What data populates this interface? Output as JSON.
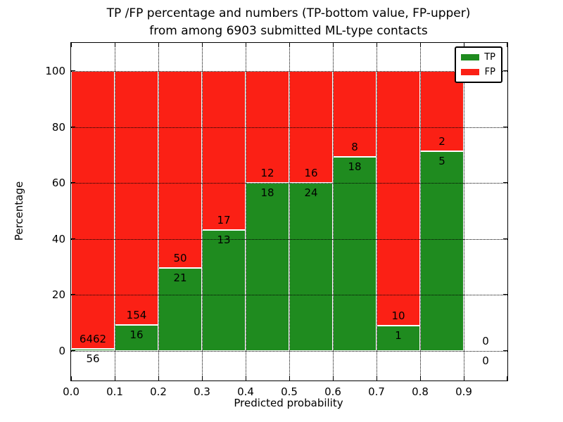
{
  "figure": {
    "background": "#ffffff",
    "plot_border_color": "#000000"
  },
  "chart_data": {
    "type": "bar",
    "stacked": true,
    "title_lines": [
      "TP /FP percentage and numbers (TP-bottom value, FP-upper)",
      "from among 6903 submitted ML-type contacts"
    ],
    "xlabel": "Predicted probability",
    "ylabel": "Percentage",
    "x_tick_labels": [
      "0.0",
      "0.1",
      "0.2",
      "0.3",
      "0.4",
      "0.5",
      "0.6",
      "0.7",
      "0.8",
      "0.9"
    ],
    "y_tick_values": [
      0,
      20,
      40,
      60,
      80,
      100
    ],
    "y_tick_labels": [
      "0",
      "20",
      "40",
      "60",
      "80",
      "100"
    ],
    "xlim": [
      0.0,
      1.0
    ],
    "ylim": [
      0,
      100
    ],
    "bin_width": 0.1,
    "grid": {
      "on": true,
      "style": "dotted",
      "color": "#000000"
    },
    "categories": [
      "0.0",
      "0.1",
      "0.2",
      "0.3",
      "0.4",
      "0.5",
      "0.6",
      "0.7",
      "0.8",
      "0.9"
    ],
    "series": [
      {
        "name": "TP",
        "color": "#1f8b1f",
        "counts": [
          56,
          16,
          21,
          13,
          18,
          24,
          18,
          1,
          5,
          0
        ]
      },
      {
        "name": "FP",
        "color": "#fb2015",
        "counts": [
          6462,
          154,
          50,
          17,
          12,
          16,
          8,
          10,
          2,
          0
        ]
      }
    ],
    "tp_percentages": [
      0.86,
      9.41,
      29.58,
      43.33,
      60.0,
      60.0,
      69.23,
      9.09,
      71.43,
      0.0
    ],
    "legend": {
      "position": "upper right",
      "entries": [
        {
          "label": "TP",
          "color": "#1f8b1f"
        },
        {
          "label": "FP",
          "color": "#fb2015"
        }
      ]
    }
  }
}
